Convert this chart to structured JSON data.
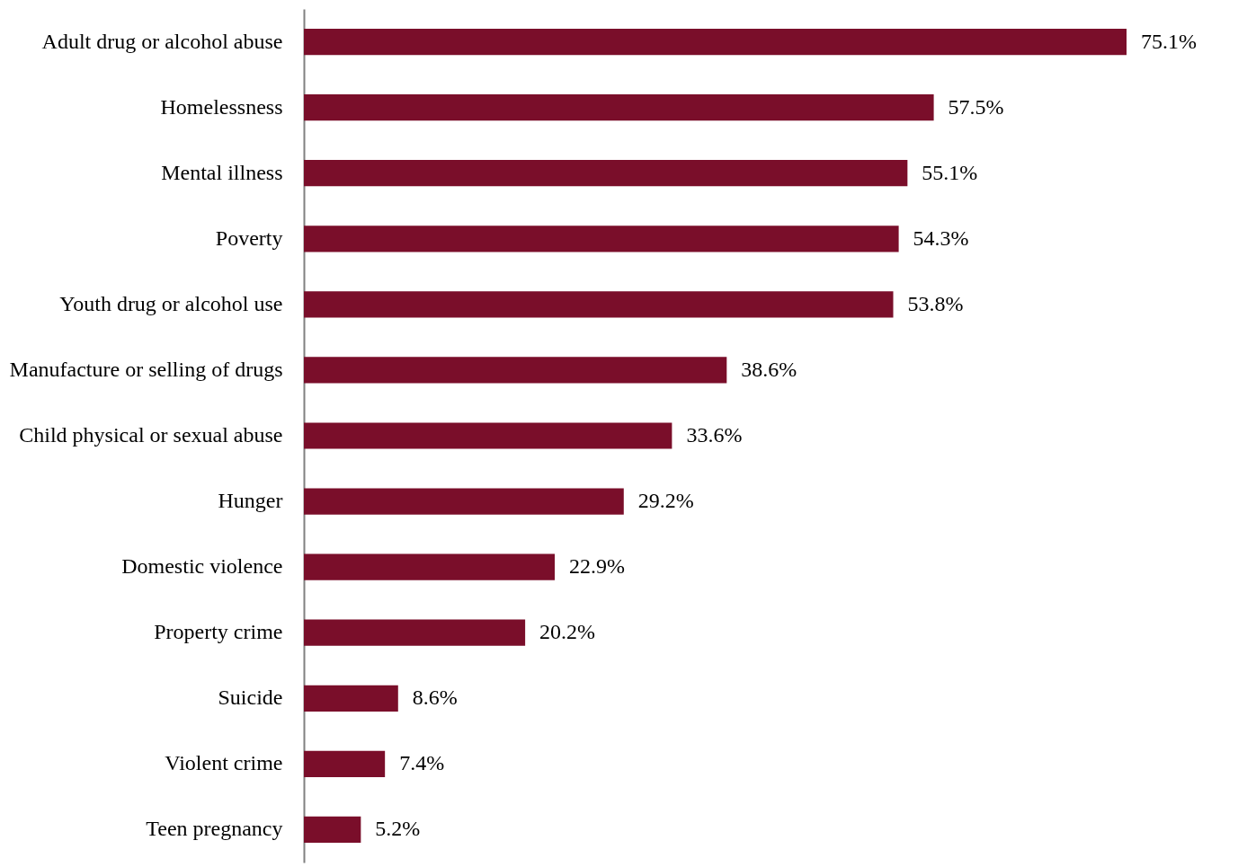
{
  "chart_data": {
    "type": "bar",
    "orientation": "horizontal",
    "color": "#7a0e2a",
    "categories": [
      "Adult drug or alcohol abuse",
      "Homelessness",
      "Mental illness",
      "Poverty",
      "Youth drug or alcohol use",
      "Manufacture or selling of drugs",
      "Child physical or sexual abuse",
      "Hunger",
      "Domestic violence",
      "Property crime",
      "Suicide",
      "Violent crime",
      "Teen pregnancy"
    ],
    "values": [
      75.1,
      57.5,
      55.1,
      54.3,
      53.8,
      38.6,
      33.6,
      29.2,
      22.9,
      20.2,
      8.6,
      7.4,
      5.2
    ],
    "value_labels": [
      "75.1%",
      "57.5%",
      "55.1%",
      "54.3%",
      "53.8%",
      "38.6%",
      "33.6%",
      "29.2%",
      "22.9%",
      "20.2%",
      "8.6%",
      "7.4%",
      "5.2%"
    ],
    "grid": false
  }
}
